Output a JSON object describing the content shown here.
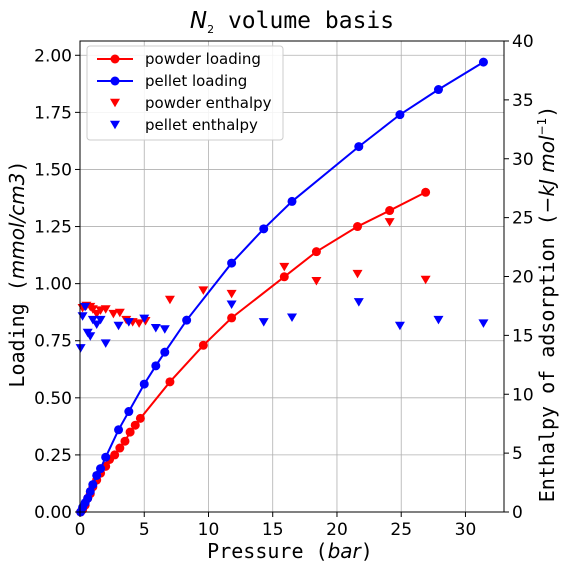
{
  "chart_data": {
    "type": "line",
    "title_main": "N",
    "title_sub": "2",
    "title_rest": " volume basis",
    "xlabel_text": "Pressure (",
    "xlabel_unit": "bar",
    "xlabel_close": ")",
    "ylabel_text": "Loading (",
    "ylabel_unit": "mmol/cm3",
    "ylabel_close": ")",
    "y2label_text": "Enthalpy of adsorption (",
    "y2label_unit": "−kJ mol",
    "y2label_sup": "−1",
    "y2label_close": ")",
    "xlim": [
      0,
      33
    ],
    "ylim": [
      0,
      2.0625
    ],
    "y2lim": [
      0,
      40
    ],
    "xticks": [
      0,
      5,
      10,
      15,
      20,
      25,
      30
    ],
    "xtick_labels": [
      "0",
      "5",
      "10",
      "15",
      "20",
      "25",
      "30"
    ],
    "yticks": [
      0,
      0.25,
      0.5,
      0.75,
      1.0,
      1.25,
      1.5,
      1.75,
      2.0
    ],
    "ytick_labels": [
      "0.00",
      "0.25",
      "0.50",
      "0.75",
      "1.00",
      "1.25",
      "1.50",
      "1.75",
      "2.00"
    ],
    "y2ticks": [
      0,
      5,
      10,
      15,
      20,
      25,
      30,
      35,
      40
    ],
    "y2tick_labels": [
      "0",
      "5",
      "10",
      "15",
      "20",
      "25",
      "30",
      "35",
      "40"
    ],
    "grid": true,
    "legend_position": "top-left",
    "series": [
      {
        "name": "powder loading",
        "axis": "left",
        "style": "line-circle",
        "color": "#ff0000",
        "x": [
          0.05,
          0.2,
          0.4,
          0.6,
          0.8,
          1.0,
          1.3,
          1.6,
          2.0,
          2.3,
          2.7,
          3.1,
          3.5,
          3.9,
          4.3,
          4.7,
          7.0,
          9.6,
          11.8,
          15.9,
          18.4,
          21.6,
          24.1,
          26.9
        ],
        "y": [
          0.0,
          0.01,
          0.03,
          0.06,
          0.08,
          0.11,
          0.14,
          0.17,
          0.2,
          0.23,
          0.25,
          0.28,
          0.31,
          0.35,
          0.38,
          0.41,
          0.57,
          0.73,
          0.85,
          1.03,
          1.14,
          1.25,
          1.32,
          1.4
        ]
      },
      {
        "name": "pellet loading",
        "axis": "left",
        "style": "line-circle",
        "color": "#0000ff",
        "x": [
          0.05,
          0.2,
          0.4,
          0.6,
          0.8,
          1.0,
          1.3,
          1.6,
          2.0,
          3.0,
          3.8,
          5.0,
          5.9,
          6.6,
          8.3,
          11.8,
          14.3,
          16.5,
          21.7,
          24.9,
          27.9,
          31.4
        ],
        "y": [
          0.0,
          0.02,
          0.04,
          0.06,
          0.09,
          0.12,
          0.16,
          0.19,
          0.24,
          0.36,
          0.44,
          0.56,
          0.64,
          0.7,
          0.84,
          1.09,
          1.24,
          1.36,
          1.6,
          1.74,
          1.85,
          1.97
        ]
      },
      {
        "name": "powder enthalpy",
        "axis": "right",
        "style": "triangle-down",
        "color": "#ff0000",
        "x": [
          0.2,
          0.5,
          0.8,
          1.0,
          1.3,
          1.6,
          2.0,
          2.6,
          3.1,
          3.6,
          4.1,
          4.6,
          5.1,
          7.0,
          9.6,
          11.8,
          15.9,
          18.4,
          21.6,
          24.1,
          26.9
        ],
        "y": [
          17.3,
          17.5,
          17.4,
          17.2,
          16.8,
          17.1,
          17.2,
          16.8,
          16.9,
          16.3,
          16.1,
          16.0,
          16.2,
          18.0,
          18.8,
          18.5,
          20.8,
          19.6,
          20.2,
          24.6,
          19.7
        ]
      },
      {
        "name": "pellet enthalpy",
        "axis": "right",
        "style": "triangle-down",
        "color": "#0000ff",
        "x": [
          0.05,
          0.2,
          0.4,
          0.6,
          0.8,
          1.0,
          1.3,
          1.6,
          2.0,
          3.0,
          3.8,
          5.0,
          5.9,
          6.6,
          11.8,
          14.3,
          16.5,
          21.7,
          24.9,
          27.9,
          31.4
        ],
        "y": [
          13.9,
          16.6,
          17.4,
          15.2,
          14.9,
          16.3,
          15.9,
          16.3,
          14.3,
          15.8,
          16.1,
          16.4,
          15.6,
          15.5,
          17.6,
          16.1,
          16.5,
          17.8,
          15.8,
          16.3,
          16.0
        ]
      }
    ]
  }
}
